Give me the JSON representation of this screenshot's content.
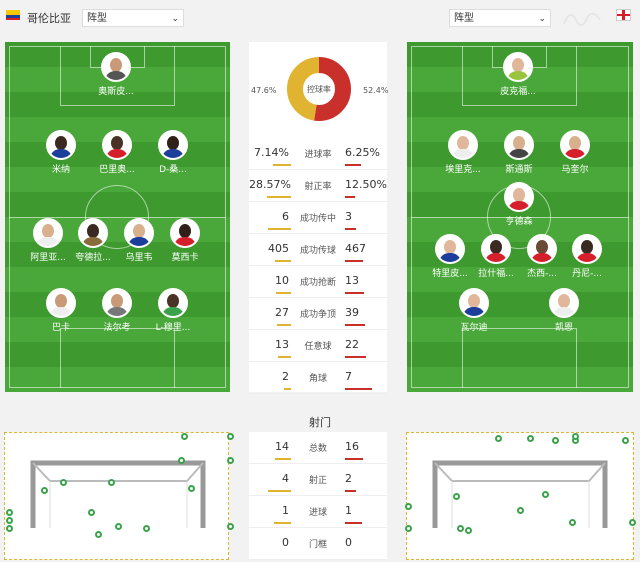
{
  "home": {
    "name": "哥伦比亚",
    "formation_label": "阵型"
  },
  "away": {
    "formation_label": "阵型"
  },
  "colors": {
    "home": "#e0b331",
    "away": "#c9302c",
    "pitch": "#3e9a2f"
  },
  "home_players": [
    {
      "name": "奥斯皮..."
    },
    {
      "name": "米纳"
    },
    {
      "name": "巴里奥..."
    },
    {
      "name": "D-桑..."
    },
    {
      "name": "阿里亚..."
    },
    {
      "name": "夸德拉..."
    },
    {
      "name": "乌里韦"
    },
    {
      "name": "莫西卡"
    },
    {
      "name": "巴卡"
    },
    {
      "name": "法尔考"
    },
    {
      "name": "L-穆里..."
    }
  ],
  "away_players": [
    {
      "name": "皮克福..."
    },
    {
      "name": "埃里克..."
    },
    {
      "name": "斯通斯"
    },
    {
      "name": "马奎尔"
    },
    {
      "name": "亨德森"
    },
    {
      "name": "特里皮..."
    },
    {
      "name": "拉什福..."
    },
    {
      "name": "杰西-..."
    },
    {
      "name": "丹尼-..."
    },
    {
      "name": "瓦尔迪"
    },
    {
      "name": "凯恩"
    }
  ],
  "possession": {
    "label": "控球率",
    "home_pct": "47.6%",
    "away_pct": "52.4%",
    "home": 47.6,
    "away": 52.4
  },
  "stats": [
    {
      "label": "进球率",
      "home": "7.14%",
      "away": "6.25%",
      "home_ratio": 0.53,
      "away_ratio": 0.47
    },
    {
      "label": "射正率",
      "home": "28.57%",
      "away": "12.50%",
      "home_ratio": 0.7,
      "away_ratio": 0.3
    },
    {
      "label": "成功传中",
      "home": "6",
      "away": "3",
      "home_ratio": 0.67,
      "away_ratio": 0.33
    },
    {
      "label": "成功传球",
      "home": "405",
      "away": "467",
      "home_ratio": 0.46,
      "away_ratio": 0.54
    },
    {
      "label": "成功抢断",
      "home": "10",
      "away": "13",
      "home_ratio": 0.43,
      "away_ratio": 0.57
    },
    {
      "label": "成功争顶",
      "home": "27",
      "away": "39",
      "home_ratio": 0.41,
      "away_ratio": 0.59
    },
    {
      "label": "任意球",
      "home": "13",
      "away": "22",
      "home_ratio": 0.37,
      "away_ratio": 0.63
    },
    {
      "label": "角球",
      "home": "2",
      "away": "7",
      "home_ratio": 0.22,
      "away_ratio": 0.78
    }
  ],
  "shots_title": "射门",
  "shot_stats": [
    {
      "label": "总数",
      "home": "14",
      "away": "16",
      "home_ratio": 0.47,
      "away_ratio": 0.53
    },
    {
      "label": "射正",
      "home": "4",
      "away": "2",
      "home_ratio": 0.67,
      "away_ratio": 0.33
    },
    {
      "label": "进球",
      "home": "1",
      "away": "1",
      "home_ratio": 0.5,
      "away_ratio": 0.5
    },
    {
      "label": "门框",
      "home": "0",
      "away": "0",
      "home_ratio": 0,
      "away_ratio": 0
    }
  ]
}
